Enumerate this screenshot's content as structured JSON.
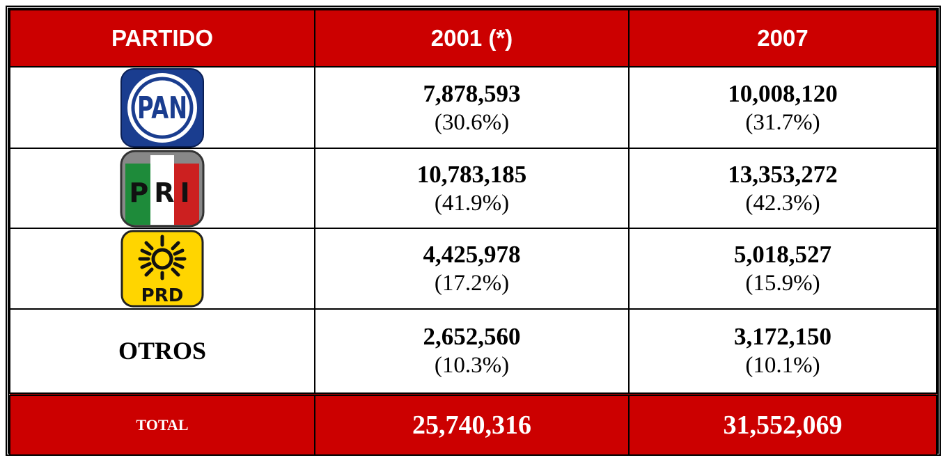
{
  "table": {
    "header": [
      "PARTIDO",
      "2001 (*)",
      "2007"
    ],
    "rows": [
      {
        "logo": "PAN",
        "cells": [
          [
            "7,878,593",
            "(30.6%)"
          ],
          [
            "10,008,120",
            "(31.7%)"
          ]
        ]
      },
      {
        "logo": "PRI",
        "cells": [
          [
            "10,783,185",
            "(41.9%)"
          ],
          [
            "13,353,272",
            "(42.3%)"
          ]
        ]
      },
      {
        "logo": "PRD",
        "cells": [
          [
            "4,425,978",
            "(17.2%)"
          ],
          [
            "5,018,527",
            "(15.9%)"
          ]
        ]
      },
      {
        "party": "OTROS",
        "cells": [
          [
            "2,652,560",
            "(10.3%)"
          ],
          [
            "3,172,150",
            "(10.1%)"
          ]
        ]
      }
    ],
    "total": {
      "label": "TOTAL",
      "values": [
        "25,740,316",
        "31,552,069"
      ]
    }
  }
}
